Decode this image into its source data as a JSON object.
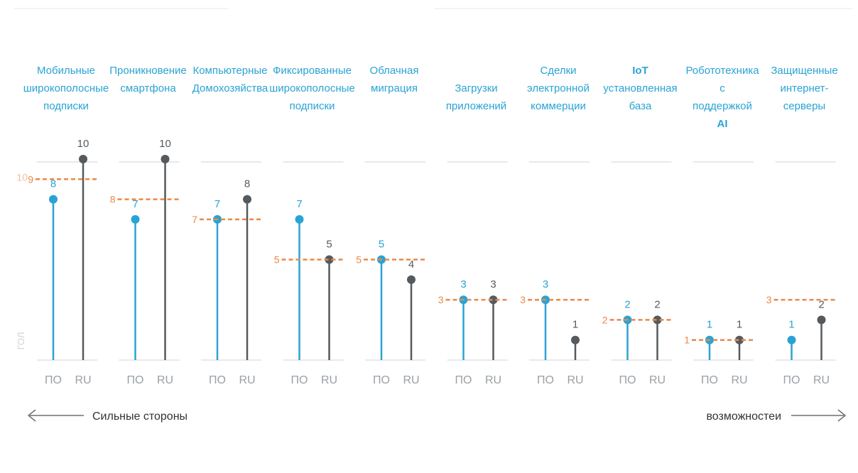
{
  "chart_data": {
    "type": "lollipop",
    "categories": [
      {
        "label": [
          "Мобильные",
          "широкополосные",
          "подписки"
        ],
        "po": 8,
        "ru": 10,
        "avg": 9,
        "avg_label": "9",
        "avg_prefix": "10"
      },
      {
        "label": [
          "Проникновение",
          "смартфона"
        ],
        "po": 7,
        "ru": 10,
        "avg": 8,
        "avg_label": "8"
      },
      {
        "label": [
          "Компьютерные",
          "Домохозяйства"
        ],
        "po": 7,
        "ru": 8,
        "avg": 7,
        "avg_label": "7"
      },
      {
        "label": [
          "Фиксированные",
          "широкополосные",
          "подписки"
        ],
        "po": 7,
        "ru": 5,
        "avg": 5,
        "avg_label": "5"
      },
      {
        "label": [
          "Облачная",
          "миграция"
        ],
        "po": 5,
        "ru": 4,
        "avg": 5,
        "avg_label": "5"
      },
      {
        "label": [
          "Загрузки",
          "приложений"
        ],
        "po": 3,
        "ru": 3,
        "avg": 3,
        "avg_label": "3"
      },
      {
        "label": [
          "Сделки",
          "электронной",
          "коммерции"
        ],
        "po": 3,
        "ru": 1,
        "avg": 3,
        "avg_label": "3"
      },
      {
        "label": [
          "IoT",
          "установленная",
          "база"
        ],
        "bold_lines": [
          0
        ],
        "po": 2,
        "ru": 2,
        "avg": 2,
        "avg_label": "2"
      },
      {
        "label": [
          "Робототехника",
          "с",
          "поддержкой",
          "AI"
        ],
        "bold_lines": [
          3
        ],
        "po": 1,
        "ru": 1,
        "avg": 1,
        "avg_label": "1"
      },
      {
        "label": [
          "Защищенные",
          "интернет-",
          "серверы"
        ],
        "po": 1,
        "ru": 2,
        "avg": 3,
        "avg_label": "3"
      }
    ],
    "series": [
      {
        "name": "ПО",
        "key": "po",
        "color": "#2aa3d4"
      },
      {
        "name": "RU",
        "key": "ru",
        "color": "#555a5e"
      }
    ],
    "average_color": "#e8894a",
    "ylim": [
      0,
      10
    ],
    "side_label": "ГОЛ"
  },
  "footer": {
    "left_text": "Сильные стороны",
    "right_text": "возможностеи"
  }
}
